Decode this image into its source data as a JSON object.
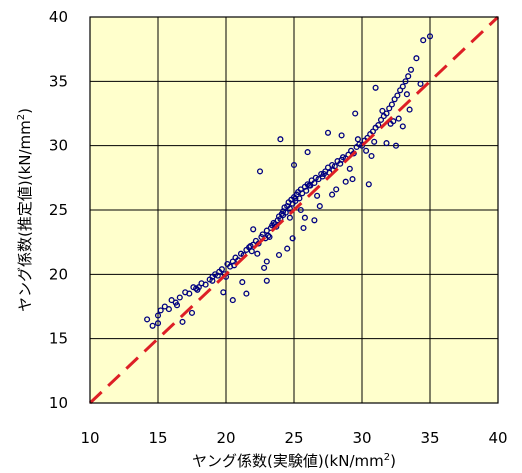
{
  "chart_data": {
    "type": "scatter",
    "title": "",
    "xlabel": "ヤング係数(実験値)(kN/mm",
    "ylabel": "ヤング係数(推定値)(kN/mm",
    "unit_suffix": ")",
    "unit_superscript": "2",
    "xlim": [
      10,
      40
    ],
    "ylim": [
      10,
      40
    ],
    "xticks": [
      "10",
      "15",
      "20",
      "25",
      "30",
      "35",
      "40"
    ],
    "yticks": [
      "10",
      "15",
      "20",
      "25",
      "30",
      "35",
      "40"
    ],
    "grid": true,
    "legend": "none",
    "colors": {
      "plot_background": "#ffffcc",
      "points": "#000080",
      "reference_line": "#dd1f26",
      "grid": "#000000"
    },
    "reference_line": {
      "type": "y=x",
      "style": "dashed",
      "from": [
        10,
        10
      ],
      "to": [
        40,
        40
      ]
    },
    "series": [
      {
        "marker": "hollow-circle",
        "x": [
          14.2,
          14.6,
          15.0,
          15.2,
          15.5,
          15.8,
          16.0,
          16.3,
          16.6,
          17.0,
          17.3,
          17.6,
          17.9,
          18.2,
          18.5,
          18.8,
          19.0,
          19.2,
          19.5,
          19.7,
          19.9,
          20.1,
          20.3,
          20.5,
          20.7,
          20.9,
          21.1,
          21.3,
          21.5,
          21.7,
          21.9,
          22.0,
          22.2,
          22.4,
          22.6,
          22.7,
          22.9,
          23.0,
          23.1,
          23.3,
          23.4,
          23.5,
          23.7,
          23.8,
          23.9,
          24.0,
          24.1,
          24.2,
          24.3,
          24.4,
          24.5,
          24.6,
          24.7,
          24.8,
          24.9,
          25.0,
          25.1,
          25.2,
          25.3,
          25.4,
          25.5,
          25.6,
          25.8,
          25.9,
          26.0,
          26.2,
          26.3,
          26.5,
          26.6,
          26.8,
          27.0,
          27.1,
          27.3,
          27.5,
          27.6,
          27.8,
          28.0,
          28.2,
          28.4,
          28.6,
          28.8,
          29.0,
          29.2,
          29.4,
          29.6,
          29.8,
          30.0,
          30.2,
          30.4,
          30.6,
          30.8,
          31.0,
          31.2,
          31.4,
          31.6,
          31.8,
          32.0,
          32.2,
          32.4,
          32.6,
          32.8,
          33.0,
          33.2,
          33.4,
          33.6,
          34.0,
          34.5,
          35.0,
          15.0,
          16.4,
          17.8,
          19.4,
          20.6,
          21.8,
          22.3,
          23.2,
          23.6,
          24.2,
          24.7,
          25.1,
          25.5,
          26.1,
          26.7,
          27.2,
          27.9,
          28.5,
          29.1,
          29.7,
          30.3,
          30.9,
          31.5,
          32.1,
          32.7,
          33.3,
          24.0,
          22.5,
          26.0,
          29.5,
          31.0,
          27.5,
          25.0,
          20.5,
          21.5,
          23.0,
          18.0,
          19.0,
          23.0,
          30.5,
          32.5,
          33.0,
          28.5,
          26.5,
          22.0,
          24.5,
          25.8,
          27.8,
          28.8,
          30.7,
          31.8,
          32.3,
          33.5,
          34.3,
          29.3,
          26.9,
          21.2,
          19.8,
          17.5,
          16.8,
          24.9,
          25.7,
          23.9,
          22.8,
          20.0,
          28.1
        ],
        "y": [
          16.5,
          16.0,
          16.8,
          17.2,
          17.5,
          17.3,
          18.0,
          17.8,
          18.2,
          18.6,
          18.5,
          19.0,
          18.8,
          19.3,
          19.2,
          19.6,
          19.5,
          20.0,
          20.2,
          20.4,
          20.0,
          20.8,
          20.6,
          21.0,
          21.3,
          21.1,
          21.6,
          21.5,
          21.9,
          22.1,
          21.8,
          22.3,
          22.6,
          22.4,
          22.9,
          23.1,
          22.8,
          23.4,
          23.0,
          23.6,
          23.8,
          24.0,
          23.7,
          24.2,
          24.5,
          24.3,
          24.7,
          24.9,
          25.2,
          24.8,
          25.3,
          25.6,
          25.1,
          25.8,
          25.5,
          26.0,
          25.7,
          26.2,
          26.4,
          25.9,
          26.6,
          26.3,
          26.8,
          26.5,
          27.0,
          26.9,
          27.3,
          27.1,
          27.5,
          27.4,
          27.8,
          27.6,
          28.0,
          28.3,
          27.9,
          28.5,
          28.4,
          28.8,
          28.6,
          29.1,
          29.0,
          29.3,
          29.6,
          29.4,
          29.9,
          30.1,
          30.0,
          30.4,
          30.6,
          30.9,
          31.1,
          31.4,
          31.6,
          32.0,
          32.3,
          32.5,
          32.9,
          33.2,
          33.6,
          33.9,
          34.3,
          34.6,
          35.0,
          35.4,
          35.9,
          36.8,
          38.2,
          38.5,
          16.2,
          17.6,
          18.9,
          19.9,
          20.7,
          22.2,
          21.6,
          22.9,
          23.9,
          24.6,
          24.4,
          25.9,
          25.0,
          26.9,
          26.1,
          27.8,
          28.1,
          28.9,
          28.2,
          30.5,
          29.6,
          30.3,
          32.7,
          31.7,
          32.1,
          34.0,
          30.5,
          28.0,
          29.5,
          32.5,
          34.5,
          31.0,
          28.5,
          18.0,
          18.5,
          19.5,
          19.0,
          19.8,
          21.0,
          27.0,
          30.0,
          31.5,
          30.8,
          24.2,
          23.5,
          22.0,
          24.4,
          26.2,
          27.2,
          29.2,
          30.2,
          31.9,
          32.8,
          34.8,
          27.4,
          25.3,
          19.4,
          18.6,
          17.0,
          16.3,
          22.8,
          23.6,
          21.5,
          20.5,
          19.8,
          26.6
        ]
      }
    ]
  }
}
